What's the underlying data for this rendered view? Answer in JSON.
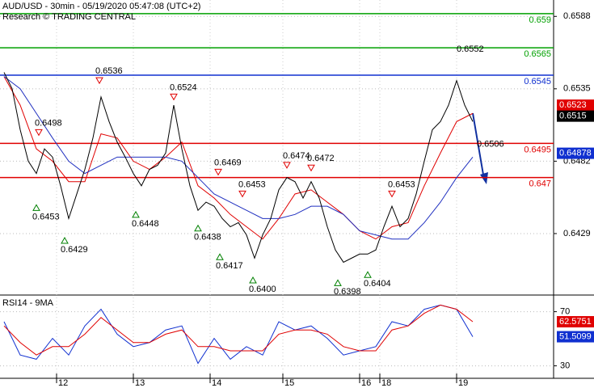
{
  "chart_data": {
    "type": "line",
    "title": "AUD/USD - 30min - 05/19/2020 05:47:08 (UTC+2)",
    "subtitle": "Research © TRADING CENTRAL",
    "xlim": [
      0,
      137
    ],
    "xticks": [
      {
        "value": 14,
        "label": "12"
      },
      {
        "value": 33,
        "label": "13"
      },
      {
        "value": 52,
        "label": "14"
      },
      {
        "value": 70,
        "label": "15"
      },
      {
        "value": 89,
        "label": "16"
      },
      {
        "value": 94,
        "label": "18"
      },
      {
        "value": 113,
        "label": "19"
      }
    ],
    "ylim": [
      0.6384,
      0.66
    ],
    "yticks": [
      0.6588,
      0.6535,
      0.6482,
      0.6429
    ],
    "grid": true,
    "price": {
      "color": "#000000",
      "x": [
        1,
        3,
        5,
        7,
        9,
        11,
        13,
        15,
        17,
        19,
        21,
        23,
        25,
        27,
        29,
        31,
        33,
        35,
        37,
        39,
        41,
        43,
        45,
        47,
        49,
        51,
        53,
        55,
        57,
        59,
        61,
        63,
        65,
        67,
        69,
        71,
        73,
        75,
        77,
        79,
        81,
        83,
        85,
        87,
        89,
        91,
        93,
        95,
        97,
        99,
        101,
        103,
        105,
        107,
        109,
        111,
        113,
        115,
        117
      ],
      "values": [
        0.6547,
        0.6535,
        0.6505,
        0.6482,
        0.6473,
        0.6491,
        0.6485,
        0.6464,
        0.644,
        0.6458,
        0.6476,
        0.6499,
        0.6529,
        0.6511,
        0.6496,
        0.6485,
        0.6473,
        0.6464,
        0.6476,
        0.6479,
        0.6488,
        0.6523,
        0.6491,
        0.6464,
        0.6446,
        0.6452,
        0.6449,
        0.644,
        0.6434,
        0.6437,
        0.6428,
        0.6411,
        0.6428,
        0.644,
        0.6461,
        0.647,
        0.6467,
        0.6455,
        0.6467,
        0.6455,
        0.6434,
        0.6417,
        0.6408,
        0.6411,
        0.6414,
        0.6414,
        0.6417,
        0.6434,
        0.6449,
        0.6434,
        0.644,
        0.6458,
        0.6482,
        0.6505,
        0.6511,
        0.6523,
        0.6541,
        0.6523,
        0.6511
      ]
    },
    "ma_x": [
      1,
      5,
      9,
      13,
      17,
      21,
      25,
      29,
      33,
      37,
      41,
      45,
      49,
      53,
      57,
      61,
      65,
      69,
      73,
      77,
      81,
      85,
      89,
      93,
      97,
      101,
      105,
      109,
      113,
      117
    ],
    "series": [
      {
        "color": "#e00000",
        "values": [
          0.6544,
          0.6523,
          0.6491,
          0.6482,
          0.6467,
          0.6467,
          0.6502,
          0.6499,
          0.6482,
          0.6476,
          0.6485,
          0.6496,
          0.6464,
          0.6455,
          0.6443,
          0.6434,
          0.6425,
          0.644,
          0.6458,
          0.6461,
          0.6452,
          0.6443,
          0.6431,
          0.6425,
          0.6434,
          0.6437,
          0.6464,
          0.6488,
          0.6511,
          0.6517
        ]
      },
      {
        "color": "#2030c0",
        "values": [
          0.6544,
          0.6535,
          0.6517,
          0.6499,
          0.6482,
          0.6473,
          0.6479,
          0.6485,
          0.6485,
          0.6485,
          0.6485,
          0.6482,
          0.647,
          0.6458,
          0.6452,
          0.6446,
          0.644,
          0.644,
          0.6443,
          0.6449,
          0.6449,
          0.6443,
          0.6431,
          0.6428,
          0.6425,
          0.6425,
          0.6437,
          0.6452,
          0.647,
          0.6485
        ]
      }
    ],
    "levels": [
      {
        "value": 0.659,
        "color": "#00a000"
      },
      {
        "value": 0.6565,
        "color": "#00a000"
      },
      {
        "value": 0.6545,
        "color": "#1030d0"
      },
      {
        "value": 0.6495,
        "color": "#e00000"
      },
      {
        "value": 0.647,
        "color": "#e00000"
      }
    ],
    "last_values": [
      {
        "value": 0.6523,
        "label": "0.6523",
        "color": "#e00000"
      },
      {
        "value": 0.6515,
        "label": "0.6515",
        "color": "#000000"
      },
      {
        "value": 0.64878,
        "label": "0.64878",
        "color": "#1030d0"
      }
    ],
    "annotations": [
      {
        "x": 24.6,
        "value": 0.6536,
        "label": "0.6536",
        "dir": "down"
      },
      {
        "x": 9.6,
        "value": 0.6498,
        "label": "0.6498",
        "dir": "down"
      },
      {
        "x": 43,
        "value": 0.6524,
        "label": "0.6524",
        "dir": "down"
      },
      {
        "x": 54,
        "value": 0.6469,
        "label": "0.6469",
        "dir": "down"
      },
      {
        "x": 60,
        "value": 0.6453,
        "label": "0.6453",
        "dir": "down"
      },
      {
        "x": 71,
        "value": 0.6474,
        "label": "0.6474",
        "dir": "down"
      },
      {
        "x": 77,
        "value": 0.6472,
        "label": "0.6472",
        "dir": "down"
      },
      {
        "x": 97,
        "value": 0.6453,
        "label": "0.6453",
        "dir": "down"
      },
      {
        "x": 114,
        "value": 0.6552,
        "label": "0.6552",
        "dir": "down",
        "triangle": false
      },
      {
        "x": 119,
        "value": 0.6506,
        "label": "0.6506",
        "dir": "up",
        "triangle": false
      },
      {
        "x": 9,
        "value": 0.6453,
        "label": "0.6453",
        "dir": "up"
      },
      {
        "x": 16,
        "value": 0.6429,
        "label": "0.6429",
        "dir": "up"
      },
      {
        "x": 33.6,
        "value": 0.6448,
        "label": "0.6448",
        "dir": "up"
      },
      {
        "x": 49,
        "value": 0.6438,
        "label": "0.6438",
        "dir": "up"
      },
      {
        "x": 54.4,
        "value": 0.6417,
        "label": "0.6417",
        "dir": "up"
      },
      {
        "x": 62.6,
        "value": 0.64,
        "label": "0.6400",
        "dir": "up"
      },
      {
        "x": 83.6,
        "value": 0.6398,
        "label": "0.6398",
        "dir": "up"
      },
      {
        "x": 91,
        "value": 0.6404,
        "label": "0.6404",
        "dir": "up"
      }
    ],
    "rsi": {
      "title": "RSI14 - 9MA",
      "ylim": [
        20.8,
        82.3
      ],
      "yticks": [
        30,
        70
      ],
      "series": [
        {
          "color": "#1030d0",
          "values": [
            62.6,
            38,
            34.9,
            50.3,
            38,
            59.5,
            71.8,
            53.4,
            44.2,
            47.2,
            56.5,
            59.5,
            31.8,
            50.3,
            34.9,
            44.2,
            38,
            62.6,
            56.5,
            59.5,
            50.3,
            38,
            41.1,
            44.2,
            62.6,
            59.5,
            71.8,
            74.9,
            71.8,
            51.5
          ]
        },
        {
          "color": "#e00000",
          "values": [
            59.5,
            47.2,
            38,
            44.2,
            44.2,
            53.4,
            65.7,
            56.5,
            47.2,
            47.2,
            53.4,
            56.5,
            44.2,
            44.2,
            41.1,
            41.1,
            41.1,
            53.4,
            56.5,
            56.5,
            53.4,
            44.2,
            41.1,
            41.1,
            56.5,
            59.5,
            68.8,
            74.9,
            71.8,
            62.6
          ]
        }
      ],
      "last_values": [
        {
          "value": 62.5751,
          "label": "62.5751",
          "color": "#e00000"
        },
        {
          "value": 51.5099,
          "label": "51.5099",
          "color": "#1030d0"
        }
      ]
    }
  }
}
